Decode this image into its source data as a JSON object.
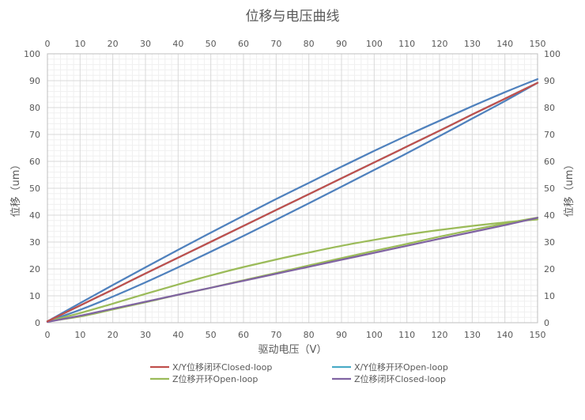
{
  "chart_data": {
    "type": "line",
    "title": "位移与电压曲线",
    "xlabel": "驱动电压（V）",
    "ylabel": "位移（um）",
    "xlim": [
      0,
      150
    ],
    "ylim": [
      0,
      100
    ],
    "x_ticks": [
      0,
      10,
      20,
      30,
      40,
      50,
      60,
      70,
      80,
      90,
      100,
      110,
      120,
      130,
      140,
      150
    ],
    "y_ticks": [
      0,
      10,
      20,
      30,
      40,
      50,
      60,
      70,
      80,
      90,
      100
    ],
    "grid": true,
    "legend_position": "bottom",
    "x": [
      0,
      10,
      20,
      30,
      40,
      50,
      60,
      70,
      80,
      90,
      100,
      110,
      120,
      130,
      140,
      150
    ],
    "series": [
      {
        "name": "X/Y位移闭环Closed-loop",
        "color": "#c0504d",
        "values": [
          0.5,
          6.4,
          12.3,
          18.3,
          24.2,
          30.1,
          36.0,
          41.9,
          47.8,
          53.7,
          59.6,
          65.5,
          71.4,
          77.4,
          83.3,
          89.2
        ]
      },
      {
        "name": "X/Y位移开环Open-loop",
        "color": "#4bacc6",
        "values": [
          0.5,
          6.4,
          12.3,
          18.3,
          24.2,
          30.1,
          36.0,
          41.9,
          47.8,
          53.7,
          59.6,
          65.5,
          71.4,
          77.4,
          83.3,
          89.2
        ]
      },
      {
        "name": "",
        "color": "#4f81bd",
        "values": [
          0.5,
          7.3,
          14.0,
          20.6,
          27.1,
          33.5,
          39.8,
          46.0,
          52.0,
          58.0,
          63.9,
          69.6,
          75.1,
          80.5,
          85.7,
          90.6
        ]
      },
      {
        "name": "",
        "color": "#4f81bd",
        "values": [
          0.5,
          4.8,
          9.7,
          15.0,
          20.6,
          26.4,
          32.3,
          38.3,
          44.4,
          50.6,
          56.8,
          63.0,
          69.4,
          75.9,
          82.4,
          89.2
        ]
      },
      {
        "name": "Z位移开环Open-loop",
        "color": "#9bbb59",
        "values": [
          0.5,
          3.6,
          7.1,
          10.7,
          14.2,
          17.6,
          20.7,
          23.5,
          26.1,
          28.6,
          30.8,
          32.8,
          34.5,
          36.0,
          37.3,
          38.4
        ]
      },
      {
        "name": "",
        "color": "#9bbb59",
        "values": [
          0.5,
          2.3,
          4.9,
          7.6,
          10.4,
          13.0,
          15.8,
          18.5,
          21.3,
          24.0,
          26.7,
          29.3,
          32.0,
          34.5,
          36.9,
          39.1
        ]
      },
      {
        "name": "Z位移闭环Closed-loop",
        "color": "#8064a2",
        "values": [
          0.3,
          2.6,
          5.2,
          7.8,
          10.4,
          13.0,
          15.6,
          18.2,
          20.8,
          23.4,
          26.0,
          28.6,
          31.2,
          33.7,
          36.3,
          39.0
        ]
      }
    ]
  }
}
